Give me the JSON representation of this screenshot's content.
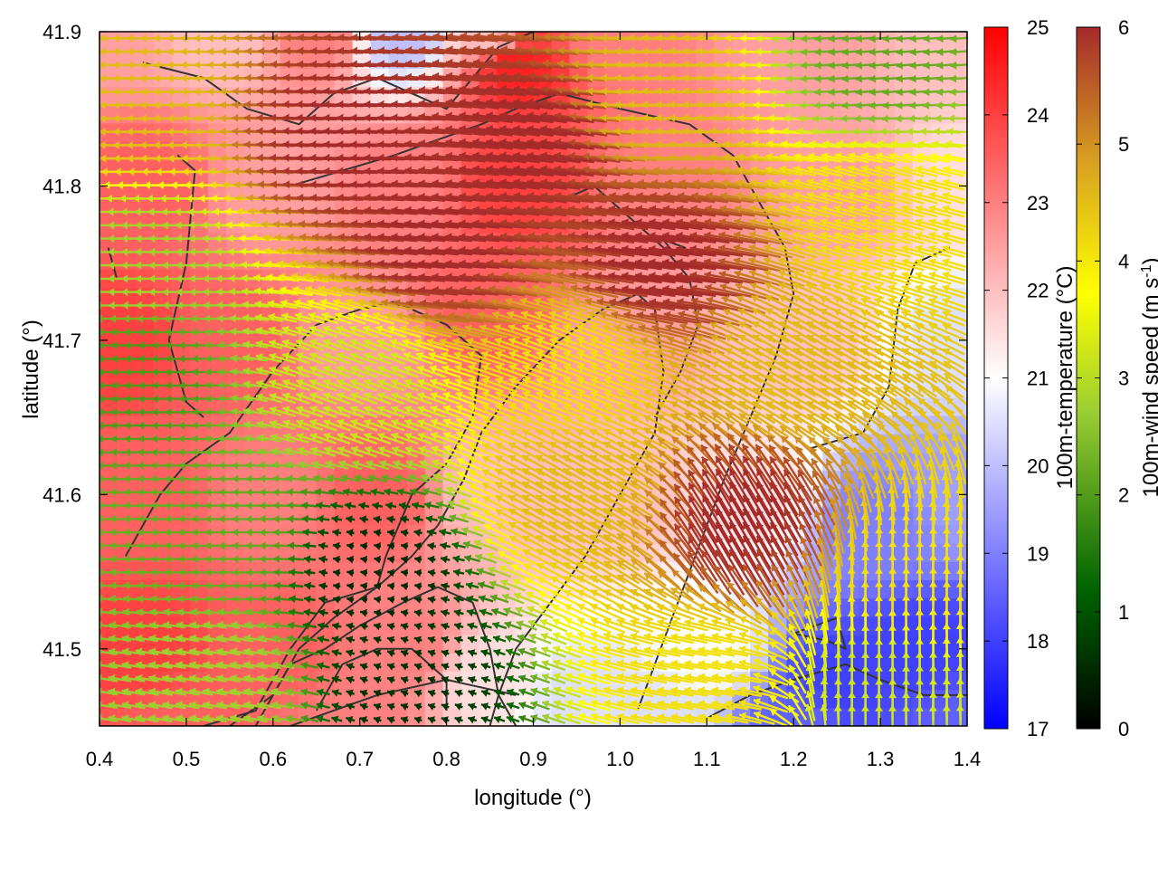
{
  "chart_data": {
    "type": "heatmap",
    "title": "",
    "xlabel": "longitude (°)",
    "ylabel": "latitude (°)",
    "xlim": [
      0.4,
      1.4
    ],
    "ylim": [
      41.45,
      41.9
    ],
    "x_ticks": [
      0.4,
      0.5,
      0.6,
      0.7,
      0.8,
      0.9,
      1.0,
      1.1,
      1.2,
      1.3,
      1.4
    ],
    "x_tick_labels": [
      "0.4",
      "0.5",
      "0.6",
      "0.7",
      "0.8",
      "0.9",
      "1.0",
      "1.1",
      "1.2",
      "1.3",
      "1.4"
    ],
    "y_ticks": [
      41.5,
      41.6,
      41.7,
      41.8,
      41.9
    ],
    "y_tick_labels": [
      "41.5",
      "41.6",
      "41.7",
      "41.8",
      "41.9"
    ],
    "grid": false,
    "temperature_colorbar": {
      "label": "100m-temperature (°C)",
      "range": [
        17,
        25
      ],
      "ticks": [
        17,
        18,
        19,
        20,
        21,
        22,
        23,
        24,
        25
      ],
      "tick_labels": [
        "17",
        "18",
        "19",
        "20",
        "21",
        "22",
        "23",
        "24",
        "25"
      ],
      "colors": [
        "#0000ff",
        "#ffffff",
        "#ff0000"
      ]
    },
    "wind_colorbar": {
      "label_main": "100m-wind speed (m s",
      "label_sup": "-1",
      "label_end": ")",
      "range": [
        0,
        6
      ],
      "ticks": [
        0,
        1,
        2,
        3,
        4,
        5,
        6
      ],
      "tick_labels": [
        "0",
        "1",
        "2",
        "3",
        "4",
        "5",
        "6"
      ],
      "colors": [
        "#000000",
        "#006400",
        "#9acd32",
        "#ffff00",
        "#daa520",
        "#a52a2a"
      ]
    },
    "temperature_field": [
      {
        "lon": 0.4,
        "lat": 41.9,
        "t": 22.5
      },
      {
        "lon": 0.55,
        "lat": 41.9,
        "t": 22.0
      },
      {
        "lon": 0.65,
        "lat": 41.9,
        "t": 23.0
      },
      {
        "lon": 0.75,
        "lat": 41.9,
        "t": 20.0
      },
      {
        "lon": 0.85,
        "lat": 41.9,
        "t": 22.0
      },
      {
        "lon": 0.88,
        "lat": 41.88,
        "t": 24.5
      },
      {
        "lon": 1.0,
        "lat": 41.9,
        "t": 23.0
      },
      {
        "lon": 1.2,
        "lat": 41.9,
        "t": 22.5
      },
      {
        "lon": 1.4,
        "lat": 41.9,
        "t": 22.0
      },
      {
        "lon": 0.45,
        "lat": 41.8,
        "t": 23.5
      },
      {
        "lon": 0.6,
        "lat": 41.8,
        "t": 22.5
      },
      {
        "lon": 0.75,
        "lat": 41.8,
        "t": 23.0
      },
      {
        "lon": 0.88,
        "lat": 41.8,
        "t": 24.0
      },
      {
        "lon": 1.05,
        "lat": 41.8,
        "t": 23.0
      },
      {
        "lon": 1.25,
        "lat": 41.8,
        "t": 22.5
      },
      {
        "lon": 1.4,
        "lat": 41.8,
        "t": 21.5
      },
      {
        "lon": 0.42,
        "lat": 41.7,
        "t": 24.0
      },
      {
        "lon": 0.55,
        "lat": 41.7,
        "t": 23.5
      },
      {
        "lon": 0.7,
        "lat": 41.7,
        "t": 22.5
      },
      {
        "lon": 0.85,
        "lat": 41.72,
        "t": 23.5
      },
      {
        "lon": 1.0,
        "lat": 41.7,
        "t": 22.5
      },
      {
        "lon": 1.2,
        "lat": 41.7,
        "t": 22.0
      },
      {
        "lon": 1.4,
        "lat": 41.7,
        "t": 20.5
      },
      {
        "lon": 0.45,
        "lat": 41.6,
        "t": 23.5
      },
      {
        "lon": 0.6,
        "lat": 41.6,
        "t": 23.0
      },
      {
        "lon": 0.72,
        "lat": 41.6,
        "t": 23.5
      },
      {
        "lon": 0.85,
        "lat": 41.6,
        "t": 22.0
      },
      {
        "lon": 1.0,
        "lat": 41.6,
        "t": 22.0
      },
      {
        "lon": 1.15,
        "lat": 41.6,
        "t": 21.5
      },
      {
        "lon": 1.3,
        "lat": 41.58,
        "t": 19.0
      },
      {
        "lon": 1.4,
        "lat": 41.6,
        "t": 19.5
      },
      {
        "lon": 0.45,
        "lat": 41.5,
        "t": 24.0
      },
      {
        "lon": 0.6,
        "lat": 41.5,
        "t": 23.5
      },
      {
        "lon": 0.75,
        "lat": 41.5,
        "t": 23.0
      },
      {
        "lon": 0.85,
        "lat": 41.48,
        "t": 21.5
      },
      {
        "lon": 0.95,
        "lat": 41.47,
        "t": 20.5
      },
      {
        "lon": 1.1,
        "lat": 41.5,
        "t": 21.0
      },
      {
        "lon": 1.25,
        "lat": 41.48,
        "t": 18.0
      },
      {
        "lon": 1.35,
        "lat": 41.5,
        "t": 18.0
      },
      {
        "lon": 0.5,
        "lat": 41.45,
        "t": 23.5
      },
      {
        "lon": 0.7,
        "lat": 41.45,
        "t": 23.0
      },
      {
        "lon": 1.05,
        "lat": 41.45,
        "t": 20.5
      },
      {
        "lon": 1.2,
        "lat": 41.45,
        "t": 18.5
      },
      {
        "lon": 1.4,
        "lat": 41.45,
        "t": 18.5
      }
    ],
    "wind_field": [
      {
        "lon": 0.45,
        "lat": 41.85,
        "speed": 4.5,
        "dir_deg": 180
      },
      {
        "lon": 0.7,
        "lat": 41.83,
        "speed": 6.0,
        "dir_deg": 178
      },
      {
        "lon": 0.9,
        "lat": 41.83,
        "speed": 6.0,
        "dir_deg": 172
      },
      {
        "lon": 1.05,
        "lat": 41.86,
        "speed": 4.5,
        "dir_deg": 178
      },
      {
        "lon": 1.3,
        "lat": 41.88,
        "speed": 2.0,
        "dir_deg": 185
      },
      {
        "lon": 0.45,
        "lat": 41.75,
        "speed": 2.5,
        "dir_deg": 180
      },
      {
        "lon": 0.8,
        "lat": 41.76,
        "speed": 6.0,
        "dir_deg": 175
      },
      {
        "lon": 1.05,
        "lat": 41.75,
        "speed": 6.0,
        "dir_deg": 172
      },
      {
        "lon": 1.3,
        "lat": 41.78,
        "speed": 4.0,
        "dir_deg": 165
      },
      {
        "lon": 0.45,
        "lat": 41.68,
        "speed": 1.8,
        "dir_deg": 180
      },
      {
        "lon": 0.7,
        "lat": 41.67,
        "speed": 3.0,
        "dir_deg": 160
      },
      {
        "lon": 0.95,
        "lat": 41.68,
        "speed": 4.0,
        "dir_deg": 160
      },
      {
        "lon": 1.2,
        "lat": 41.68,
        "speed": 4.5,
        "dir_deg": 150
      },
      {
        "lon": 0.55,
        "lat": 41.57,
        "speed": 2.0,
        "dir_deg": 180
      },
      {
        "lon": 0.72,
        "lat": 41.55,
        "speed": 0.5,
        "dir_deg": 170
      },
      {
        "lon": 0.95,
        "lat": 41.6,
        "speed": 4.5,
        "dir_deg": 150
      },
      {
        "lon": 1.15,
        "lat": 41.58,
        "speed": 6.0,
        "dir_deg": 120
      },
      {
        "lon": 1.33,
        "lat": 41.55,
        "speed": 4.0,
        "dir_deg": 90
      },
      {
        "lon": 0.55,
        "lat": 41.48,
        "speed": 2.5,
        "dir_deg": 170
      },
      {
        "lon": 0.75,
        "lat": 41.48,
        "speed": 0.6,
        "dir_deg": 160
      },
      {
        "lon": 1.1,
        "lat": 41.48,
        "speed": 4.0,
        "dir_deg": 170
      },
      {
        "lon": 1.3,
        "lat": 41.48,
        "speed": 3.0,
        "dir_deg": 90
      }
    ],
    "contours": [
      [
        [
          0.43,
          41.56
        ],
        [
          0.47,
          41.6
        ],
        [
          0.5,
          41.62
        ],
        [
          0.55,
          41.64
        ],
        [
          0.6,
          41.68
        ],
        [
          0.65,
          41.71
        ],
        [
          0.7,
          41.72
        ],
        [
          0.74,
          41.725
        ],
        [
          0.8,
          41.71
        ],
        [
          0.84,
          41.69
        ],
        [
          0.83,
          41.65
        ],
        [
          0.8,
          41.62
        ],
        [
          0.76,
          41.6
        ],
        [
          0.73,
          41.56
        ],
        [
          0.72,
          41.54
        ],
        [
          0.67,
          41.52
        ],
        [
          0.63,
          41.5
        ],
        [
          0.6,
          41.47
        ],
        [
          0.55,
          41.45
        ]
      ],
      [
        [
          0.58,
          41.45
        ],
        [
          0.62,
          41.49
        ],
        [
          0.66,
          41.5
        ],
        [
          0.7,
          41.515
        ],
        [
          0.75,
          41.53
        ],
        [
          0.79,
          41.54
        ],
        [
          0.83,
          41.53
        ],
        [
          0.85,
          41.5
        ],
        [
          0.86,
          41.47
        ],
        [
          0.88,
          41.45
        ]
      ],
      [
        [
          0.65,
          41.46
        ],
        [
          0.68,
          41.49
        ],
        [
          0.72,
          41.5
        ],
        [
          0.76,
          41.5
        ],
        [
          0.8,
          41.48
        ],
        [
          0.8,
          41.46
        ]
      ],
      [
        [
          0.52,
          41.45
        ],
        [
          0.58,
          41.46
        ],
        [
          0.62,
          41.5
        ],
        [
          0.66,
          41.53
        ],
        [
          0.72,
          41.54
        ],
        [
          0.76,
          41.56
        ],
        [
          0.79,
          41.58
        ],
        [
          0.82,
          41.61
        ],
        [
          0.84,
          41.64
        ],
        [
          0.88,
          41.67
        ],
        [
          0.93,
          41.7
        ],
        [
          0.98,
          41.72
        ],
        [
          1.02,
          41.73
        ],
        [
          1.04,
          41.72
        ],
        [
          1.05,
          41.68
        ],
        [
          1.04,
          41.64
        ],
        [
          1.0,
          41.6
        ],
        [
          0.96,
          41.56
        ],
        [
          0.92,
          41.53
        ],
        [
          0.88,
          41.5
        ],
        [
          0.86,
          41.47
        ],
        [
          0.85,
          41.45
        ]
      ],
      [
        [
          0.62,
          41.45
        ],
        [
          0.72,
          41.47
        ],
        [
          0.8,
          41.48
        ],
        [
          0.88,
          41.47
        ]
      ],
      [
        [
          0.45,
          41.88
        ],
        [
          0.52,
          41.87
        ],
        [
          0.57,
          41.85
        ],
        [
          0.63,
          41.84
        ],
        [
          0.67,
          41.86
        ],
        [
          0.72,
          41.87
        ],
        [
          0.76,
          41.86
        ],
        [
          0.8,
          41.85
        ],
        [
          0.83,
          41.87
        ],
        [
          0.86,
          41.89
        ],
        [
          0.9,
          41.9
        ]
      ],
      [
        [
          0.62,
          41.8
        ],
        [
          0.68,
          41.81
        ],
        [
          0.74,
          41.82
        ],
        [
          0.79,
          41.83
        ],
        [
          0.84,
          41.84
        ],
        [
          0.88,
          41.85
        ],
        [
          0.93,
          41.86
        ],
        [
          1.0,
          41.85
        ],
        [
          1.08,
          41.84
        ],
        [
          1.13,
          41.82
        ],
        [
          1.16,
          41.79
        ],
        [
          1.19,
          41.76
        ],
        [
          1.2,
          41.73
        ],
        [
          1.18,
          41.69
        ],
        [
          1.15,
          41.65
        ],
        [
          1.12,
          41.61
        ],
        [
          1.1,
          41.58
        ],
        [
          1.08,
          41.55
        ],
        [
          1.06,
          41.52
        ],
        [
          1.04,
          41.49
        ],
        [
          1.02,
          41.46
        ]
      ],
      [
        [
          0.93,
          41.79
        ],
        [
          0.97,
          41.8
        ],
        [
          1.01,
          41.78
        ],
        [
          1.05,
          41.76
        ],
        [
          1.08,
          41.74
        ],
        [
          1.09,
          41.71
        ],
        [
          1.07,
          41.68
        ],
        [
          1.04,
          41.65
        ]
      ],
      [
        [
          1.05,
          41.765
        ],
        [
          1.075,
          41.76
        ],
        [
          1.06,
          41.758
        ],
        [
          1.05,
          41.765
        ]
      ],
      [
        [
          1.1,
          41.455
        ],
        [
          1.15,
          41.47
        ],
        [
          1.2,
          41.48
        ],
        [
          1.26,
          41.49
        ],
        [
          1.3,
          41.48
        ],
        [
          1.35,
          41.47
        ],
        [
          1.4,
          41.47
        ]
      ],
      [
        [
          1.2,
          41.51
        ],
        [
          1.25,
          41.52
        ],
        [
          1.26,
          41.5
        ],
        [
          1.24,
          41.505
        ],
        [
          1.2,
          41.51
        ]
      ],
      [
        [
          1.22,
          41.63
        ],
        [
          1.28,
          41.64
        ],
        [
          1.31,
          41.67
        ],
        [
          1.32,
          41.72
        ],
        [
          1.34,
          41.75
        ],
        [
          1.38,
          41.76
        ]
      ],
      [
        [
          0.41,
          41.76
        ],
        [
          0.42,
          41.74
        ]
      ],
      [
        [
          0.49,
          41.82
        ],
        [
          0.51,
          41.81
        ],
        [
          0.5,
          41.75
        ],
        [
          0.48,
          41.7
        ],
        [
          0.5,
          41.66
        ],
        [
          0.52,
          41.65
        ]
      ]
    ]
  }
}
